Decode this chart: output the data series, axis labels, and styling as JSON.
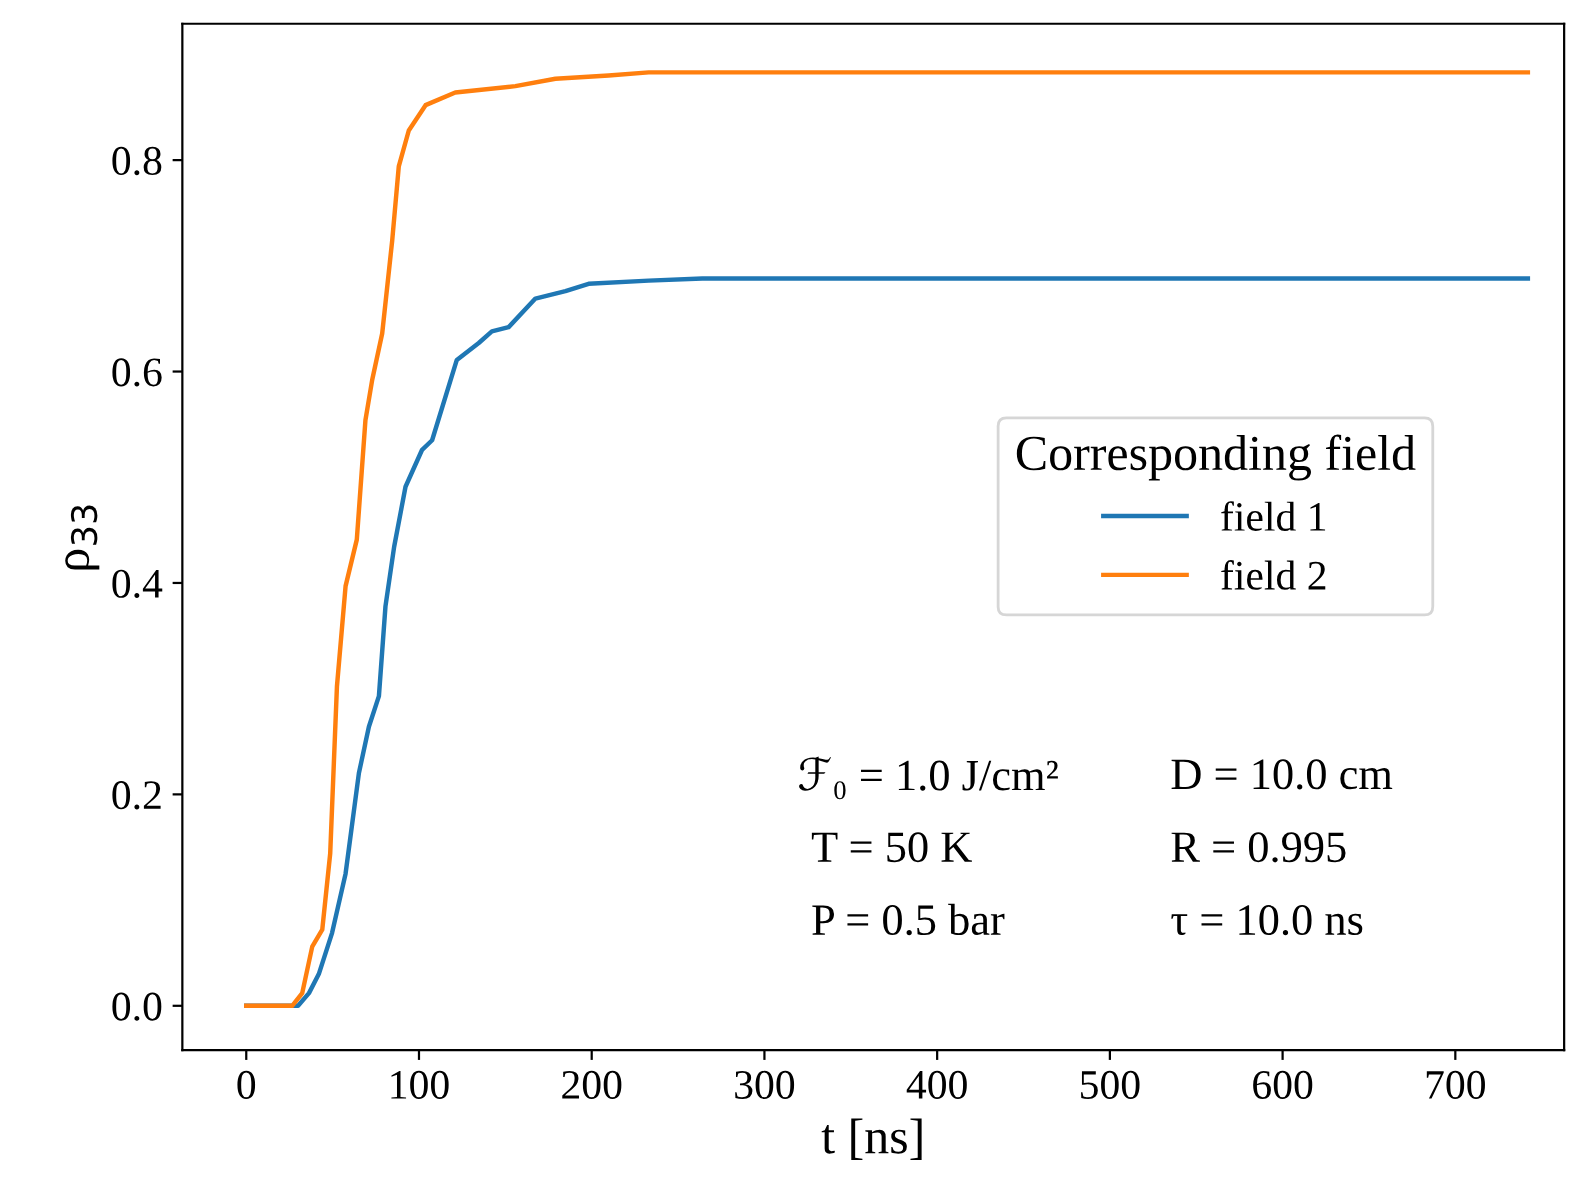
{
  "chart_data": {
    "type": "line",
    "xlabel": "t [ns]",
    "ylabel": "ρ$_{33}$",
    "legend_title": "Corresponding field",
    "legend": "right",
    "grid": false,
    "xlim": [
      -37,
      763
    ],
    "ylim": [
      -0.042,
      0.929
    ],
    "xticks": [
      0,
      100,
      200,
      300,
      400,
      500,
      600,
      700
    ],
    "yticks": [
      {
        "value": 0,
        "label": "0.0"
      },
      {
        "value": 0.2,
        "label": "0.2"
      },
      {
        "value": 0.4,
        "label": "0.4"
      },
      {
        "value": 0.6,
        "label": "0.6"
      },
      {
        "value": 0.8,
        "label": "0.8"
      }
    ],
    "annotations": [
      "ℱ₀ = 1.0 J/cm²",
      "T = 50 K",
      "P = 0.5 bar",
      "D = 10.0 cm",
      "R = 0.995",
      "τ = 10.0 ns"
    ],
    "series": [
      {
        "name": "field 1",
        "color": "#1f77b4",
        "x": [
          0,
          30,
          36.3,
          42,
          49.7,
          57.5,
          65.2,
          71,
          76.8,
          80.6,
          85.6,
          92.2,
          101.8,
          107.6,
          121.9,
          134.6,
          142.2,
          151.9,
          167.4,
          184.8,
          198.2,
          233,
          264,
          742
        ],
        "values": [
          0,
          0,
          0.012,
          0.03,
          0.069,
          0.125,
          0.22,
          0.264,
          0.293,
          0.378,
          0.434,
          0.491,
          0.526,
          0.535,
          0.611,
          0.627,
          0.638,
          0.642,
          0.669,
          0.676,
          0.683,
          0.686,
          0.688,
          0.688
        ]
      },
      {
        "name": "field 2",
        "color": "#ff7f0e",
        "x": [
          0,
          26.6,
          32.4,
          38.2,
          44,
          48.6,
          52.5,
          57.5,
          64,
          69,
          72.9,
          78.7,
          84.5,
          88.3,
          94.1,
          103.8,
          121,
          155.8,
          179,
          209.8,
          233,
          742
        ],
        "values": [
          0,
          0,
          0.012,
          0.056,
          0.072,
          0.144,
          0.302,
          0.397,
          0.441,
          0.554,
          0.592,
          0.636,
          0.724,
          0.794,
          0.828,
          0.852,
          0.864,
          0.87,
          0.877,
          0.88,
          0.883,
          0.883
        ]
      }
    ]
  }
}
